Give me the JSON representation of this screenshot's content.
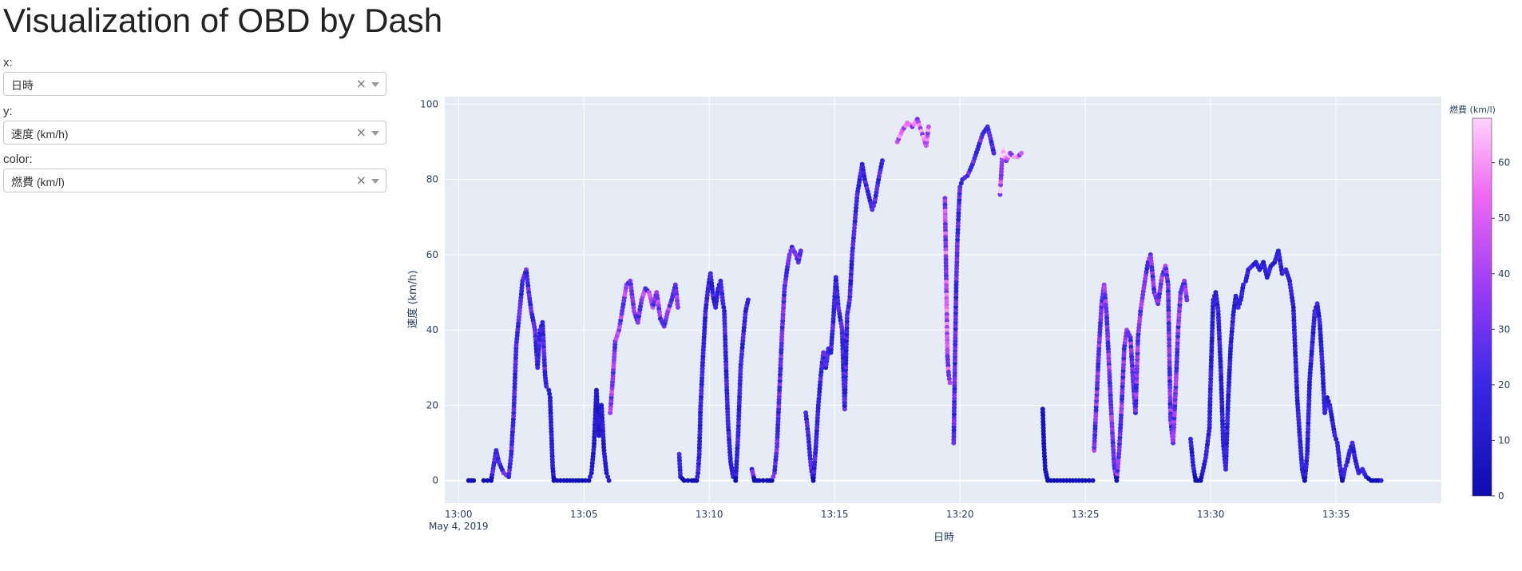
{
  "app": {
    "title": "Visualization of OBD by Dash"
  },
  "controls": {
    "x": {
      "label": "x:",
      "value": "日時"
    },
    "y": {
      "label": "y:",
      "value": "速度 (km/h)"
    },
    "color": {
      "label": "color:",
      "value": "燃費 (km/l)"
    }
  },
  "colors": {
    "plot_bg": "#e5ecf6",
    "grid": "#ffffff",
    "color_low": "#0d0dad",
    "color_mid": "#7b38ff",
    "color_high": "#ffcdfb"
  },
  "chart_data": {
    "type": "scatter",
    "title": "",
    "xlabel": "日時",
    "ylabel": "速度 (km/h)",
    "x_unit": "minutes after 13:00 on May 4, 2019",
    "x_range": [
      "12:59:27",
      "13:39:12"
    ],
    "ylim": [
      -6,
      102
    ],
    "x_ticks": [
      "13:00",
      "13:05",
      "13:10",
      "13:15",
      "13:20",
      "13:25",
      "13:30",
      "13:35"
    ],
    "x_tick_sublabel": "May 4, 2019",
    "y_ticks": [
      0,
      20,
      40,
      60,
      80,
      100
    ],
    "grid": true,
    "colorbar": {
      "title": "燃費 (km/l)",
      "range": [
        0,
        68
      ],
      "ticks": [
        0,
        10,
        20,
        30,
        40,
        50,
        60
      ]
    },
    "segments": [
      {
        "points": [
          [
            0.4,
            0
          ],
          [
            0.6,
            0
          ]
        ],
        "fuel": 2
      },
      {
        "points": [
          [
            1.0,
            0
          ],
          [
            1.3,
            0
          ],
          [
            1.5,
            8
          ],
          [
            1.6,
            5
          ],
          [
            1.8,
            2
          ],
          [
            2.0,
            1
          ],
          [
            2.1,
            7
          ],
          [
            2.2,
            18
          ],
          [
            2.3,
            36
          ],
          [
            2.45,
            46
          ],
          [
            2.55,
            53
          ],
          [
            2.7,
            56
          ],
          [
            2.8,
            50
          ],
          [
            2.9,
            45
          ],
          [
            3.05,
            40
          ],
          [
            3.15,
            30
          ],
          [
            3.25,
            40
          ],
          [
            3.35,
            42
          ],
          [
            3.45,
            28
          ],
          [
            3.5,
            25
          ]
        ],
        "fuel": 22
      },
      {
        "points": [
          [
            3.6,
            24
          ],
          [
            3.65,
            22
          ],
          [
            3.7,
            13
          ],
          [
            3.75,
            4
          ],
          [
            3.8,
            0
          ],
          [
            4.2,
            0
          ],
          [
            4.8,
            0
          ],
          [
            5.2,
            0
          ],
          [
            5.3,
            2
          ],
          [
            5.4,
            9
          ],
          [
            5.5,
            24
          ],
          [
            5.6,
            12
          ],
          [
            5.7,
            20
          ],
          [
            5.8,
            8
          ],
          [
            5.9,
            2
          ],
          [
            6.0,
            0
          ]
        ],
        "fuel": 12
      },
      {
        "points": [
          [
            6.05,
            18
          ],
          [
            6.15,
            27
          ],
          [
            6.25,
            37
          ],
          [
            6.4,
            40
          ],
          [
            6.55,
            46
          ],
          [
            6.7,
            52
          ],
          [
            6.85,
            53
          ],
          [
            7.0,
            45
          ],
          [
            7.15,
            42
          ],
          [
            7.3,
            48
          ],
          [
            7.45,
            51
          ],
          [
            7.6,
            50
          ],
          [
            7.75,
            46
          ],
          [
            7.9,
            50
          ],
          [
            8.05,
            43
          ],
          [
            8.2,
            41
          ],
          [
            8.35,
            45
          ],
          [
            8.5,
            48
          ],
          [
            8.65,
            52
          ],
          [
            8.75,
            46
          ]
        ],
        "fuel": 34
      },
      {
        "points": [
          [
            8.8,
            7
          ],
          [
            8.85,
            1
          ],
          [
            9.0,
            0
          ],
          [
            9.3,
            0
          ],
          [
            9.5,
            0
          ],
          [
            9.55,
            2
          ],
          [
            9.6,
            7
          ],
          [
            9.65,
            19
          ],
          [
            9.75,
            33
          ],
          [
            9.85,
            45
          ],
          [
            9.95,
            51
          ],
          [
            10.05,
            55
          ],
          [
            10.15,
            49
          ],
          [
            10.25,
            46
          ],
          [
            10.35,
            51
          ],
          [
            10.45,
            53
          ],
          [
            10.55,
            47
          ],
          [
            10.6,
            45
          ],
          [
            10.7,
            24
          ],
          [
            10.75,
            15
          ],
          [
            10.85,
            5
          ],
          [
            10.95,
            1
          ],
          [
            11.05,
            0
          ],
          [
            11.15,
            12
          ],
          [
            11.25,
            30
          ],
          [
            11.35,
            38
          ],
          [
            11.45,
            45
          ],
          [
            11.55,
            48
          ]
        ],
        "fuel": 18
      },
      {
        "points": [
          [
            11.7,
            3
          ],
          [
            11.8,
            0
          ],
          [
            12.0,
            0
          ],
          [
            12.3,
            0
          ],
          [
            12.5,
            0
          ],
          [
            12.6,
            2
          ],
          [
            12.7,
            9
          ],
          [
            12.8,
            24
          ],
          [
            12.9,
            39
          ],
          [
            13.0,
            51
          ],
          [
            13.1,
            56
          ],
          [
            13.2,
            60
          ],
          [
            13.3,
            62
          ],
          [
            13.45,
            60
          ],
          [
            13.55,
            58
          ],
          [
            13.65,
            61
          ]
        ],
        "fuel": 26
      },
      {
        "points": [
          [
            13.85,
            18
          ],
          [
            13.95,
            12
          ],
          [
            14.05,
            4
          ],
          [
            14.15,
            0
          ],
          [
            14.25,
            9
          ],
          [
            14.35,
            20
          ],
          [
            14.45,
            28
          ],
          [
            14.55,
            34
          ],
          [
            14.65,
            30
          ],
          [
            14.75,
            35
          ],
          [
            14.85,
            34
          ],
          [
            14.95,
            43
          ],
          [
            15.05,
            54
          ],
          [
            15.15,
            46
          ],
          [
            15.3,
            40
          ],
          [
            15.4,
            19
          ],
          [
            15.5,
            44
          ],
          [
            15.6,
            48
          ],
          [
            15.7,
            60
          ],
          [
            15.8,
            68
          ],
          [
            15.9,
            76
          ],
          [
            16.0,
            80
          ],
          [
            16.1,
            84
          ],
          [
            16.2,
            80
          ],
          [
            16.35,
            76
          ],
          [
            16.5,
            72
          ],
          [
            16.6,
            74
          ],
          [
            16.75,
            80
          ],
          [
            16.9,
            85
          ]
        ],
        "fuel": 20
      },
      {
        "points": [
          [
            17.5,
            90
          ],
          [
            17.7,
            93
          ],
          [
            17.9,
            95
          ],
          [
            18.1,
            94
          ],
          [
            18.3,
            96
          ],
          [
            18.5,
            92
          ],
          [
            18.65,
            89
          ],
          [
            18.75,
            94
          ]
        ],
        "fuel": 46
      },
      {
        "points": [
          [
            19.4,
            75
          ],
          [
            19.5,
            33
          ],
          [
            19.55,
            28
          ],
          [
            19.6,
            26
          ]
        ],
        "fuel": 42
      },
      {
        "points": [
          [
            19.75,
            10
          ],
          [
            19.8,
            32
          ],
          [
            19.85,
            52
          ],
          [
            19.9,
            64
          ],
          [
            19.95,
            72
          ],
          [
            20.0,
            78
          ],
          [
            20.1,
            80
          ],
          [
            20.3,
            81
          ],
          [
            20.5,
            84
          ],
          [
            20.7,
            88
          ],
          [
            20.9,
            92
          ],
          [
            21.1,
            94
          ],
          [
            21.25,
            90
          ],
          [
            21.35,
            87
          ]
        ],
        "fuel": 24
      },
      {
        "points": [
          [
            21.6,
            76
          ],
          [
            21.7,
            88
          ],
          [
            21.85,
            85
          ],
          [
            22.0,
            87
          ],
          [
            22.15,
            86
          ],
          [
            22.3,
            86
          ],
          [
            22.45,
            87
          ]
        ],
        "fuel": 50
      },
      {
        "points": [
          [
            23.3,
            19
          ],
          [
            23.35,
            9
          ],
          [
            23.4,
            3
          ],
          [
            23.5,
            0
          ],
          [
            24.0,
            0
          ],
          [
            24.5,
            0
          ],
          [
            25.0,
            0
          ],
          [
            25.3,
            0
          ]
        ],
        "fuel": 6
      },
      {
        "points": [
          [
            25.35,
            8
          ],
          [
            25.45,
            22
          ],
          [
            25.55,
            36
          ],
          [
            25.65,
            47
          ],
          [
            25.75,
            52
          ],
          [
            25.85,
            44
          ],
          [
            25.95,
            30
          ],
          [
            26.05,
            16
          ],
          [
            26.15,
            4
          ],
          [
            26.25,
            0
          ],
          [
            26.35,
            8
          ],
          [
            26.45,
            20
          ],
          [
            26.55,
            35
          ],
          [
            26.65,
            40
          ],
          [
            26.8,
            38
          ],
          [
            26.9,
            27
          ],
          [
            27.0,
            18
          ],
          [
            27.1,
            38
          ],
          [
            27.2,
            45
          ],
          [
            27.35,
            52
          ],
          [
            27.5,
            58
          ],
          [
            27.6,
            60
          ],
          [
            27.75,
            50
          ],
          [
            27.9,
            47
          ],
          [
            28.05,
            54
          ],
          [
            28.2,
            57
          ],
          [
            28.3,
            52
          ],
          [
            28.4,
            16
          ],
          [
            28.5,
            10
          ],
          [
            28.6,
            24
          ],
          [
            28.7,
            40
          ],
          [
            28.8,
            50
          ],
          [
            28.95,
            53
          ],
          [
            29.05,
            48
          ]
        ],
        "fuel": 30
      },
      {
        "points": [
          [
            29.2,
            11
          ],
          [
            29.3,
            4
          ],
          [
            29.4,
            0
          ],
          [
            29.6,
            0
          ],
          [
            29.8,
            6
          ],
          [
            29.95,
            14
          ],
          [
            30.0,
            27
          ],
          [
            30.1,
            48
          ],
          [
            30.2,
            50
          ],
          [
            30.3,
            45
          ],
          [
            30.4,
            30
          ],
          [
            30.5,
            10
          ],
          [
            30.6,
            3
          ],
          [
            30.7,
            22
          ],
          [
            30.8,
            36
          ],
          [
            30.9,
            44
          ],
          [
            31.0,
            49
          ],
          [
            31.1,
            46
          ],
          [
            31.2,
            48
          ],
          [
            31.3,
            52
          ],
          [
            31.4,
            53
          ],
          [
            31.5,
            56
          ],
          [
            31.65,
            57
          ],
          [
            31.8,
            58
          ],
          [
            31.95,
            56
          ],
          [
            32.1,
            58
          ],
          [
            32.25,
            54
          ],
          [
            32.4,
            57
          ],
          [
            32.55,
            58
          ],
          [
            32.7,
            61
          ],
          [
            32.85,
            55
          ],
          [
            33.0,
            56
          ],
          [
            33.15,
            53
          ],
          [
            33.3,
            46
          ],
          [
            33.45,
            22
          ],
          [
            33.55,
            12
          ],
          [
            33.65,
            3
          ],
          [
            33.75,
            0
          ],
          [
            33.85,
            7
          ],
          [
            33.95,
            27
          ],
          [
            34.05,
            36
          ],
          [
            34.15,
            45
          ],
          [
            34.25,
            47
          ],
          [
            34.35,
            42
          ],
          [
            34.45,
            31
          ],
          [
            34.55,
            18
          ],
          [
            34.65,
            22
          ],
          [
            34.75,
            20
          ],
          [
            34.85,
            16
          ],
          [
            34.95,
            12
          ],
          [
            35.05,
            10
          ],
          [
            35.15,
            4
          ],
          [
            35.25,
            0
          ],
          [
            35.35,
            3
          ],
          [
            35.45,
            5
          ],
          [
            35.55,
            8
          ],
          [
            35.65,
            10
          ],
          [
            35.75,
            6
          ],
          [
            35.9,
            2
          ],
          [
            36.05,
            3
          ],
          [
            36.2,
            1
          ],
          [
            36.4,
            0
          ],
          [
            36.6,
            0
          ],
          [
            36.8,
            0
          ]
        ],
        "fuel": 16
      }
    ]
  }
}
